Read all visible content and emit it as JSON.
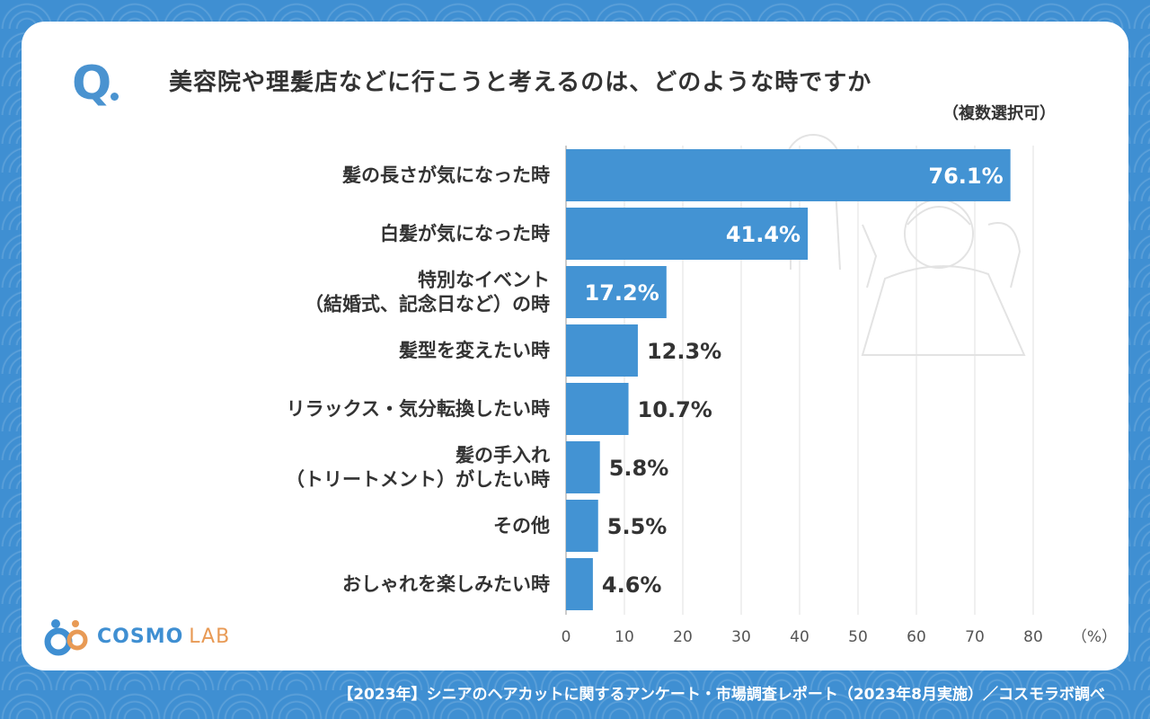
{
  "question": {
    "mark": "Q",
    "title": "美容院や理髪店などに行こうと考えるのは、どのような時ですか",
    "subtitle": "（複数選択可）"
  },
  "logo": {
    "main": "COSMO",
    "sub": "LAB"
  },
  "footer": "【2023年】シニアのヘアカットに関するアンケート・市場調査レポート（2023年8月実施）／コスモラボ調べ",
  "colors": {
    "bar": "#4393d3",
    "accent": "#4a93d0",
    "background": "#3f8fd2",
    "logo_orange": "#e89a55"
  },
  "chart_data": {
    "type": "bar",
    "orientation": "horizontal",
    "categories": [
      [
        "髪の長さが気になった時"
      ],
      [
        "白髪が気になった時"
      ],
      [
        "特別なイベント",
        "（結婚式、記念日など）の時"
      ],
      [
        "髪型を変えたい時"
      ],
      [
        "リラックス・気分転換したい時"
      ],
      [
        "髪の手入れ",
        "（トリートメント）がしたい時"
      ],
      [
        "その他"
      ],
      [
        "おしゃれを楽しみたい時"
      ]
    ],
    "values": [
      76.1,
      41.4,
      17.2,
      12.3,
      10.7,
      5.8,
      5.5,
      4.6
    ],
    "value_labels": [
      "76.1%",
      "41.4%",
      "17.2%",
      "12.3%",
      "10.7%",
      "5.8%",
      "5.5%",
      "4.6%"
    ],
    "x_ticks": [
      "0",
      "10",
      "20",
      "30",
      "40",
      "50",
      "60",
      "70",
      "80"
    ],
    "x_unit": "（%）",
    "xlim": [
      0,
      80
    ],
    "grid": true
  }
}
